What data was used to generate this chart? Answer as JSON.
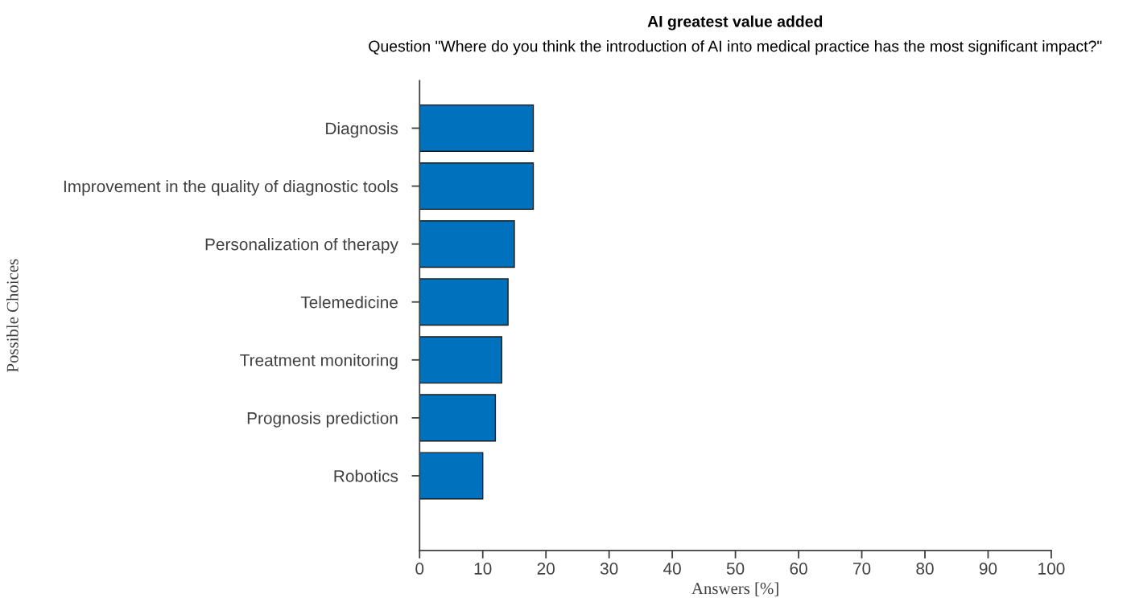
{
  "chart_data": {
    "type": "bar",
    "orientation": "horizontal",
    "title": "AI greatest value added",
    "subtitle": "Question \"Where do you think the introduction of AI into medical practice has the most significant impact?\"",
    "xlabel": "Answers [%]",
    "ylabel": "Possible Choices",
    "categories": [
      "Diagnosis",
      "Improvement in the quality of diagnostic tools",
      "Personalization of therapy",
      "Telemedicine",
      "Treatment monitoring",
      "Prognosis prediction",
      "Robotics"
    ],
    "values": [
      18,
      18,
      15,
      14,
      13,
      12,
      10
    ],
    "color": "#0072bd",
    "xlim": [
      0,
      100
    ],
    "xticks": [
      0,
      10,
      20,
      30,
      40,
      50,
      60,
      70,
      80,
      90,
      100
    ],
    "grid": false,
    "legend": false
  }
}
